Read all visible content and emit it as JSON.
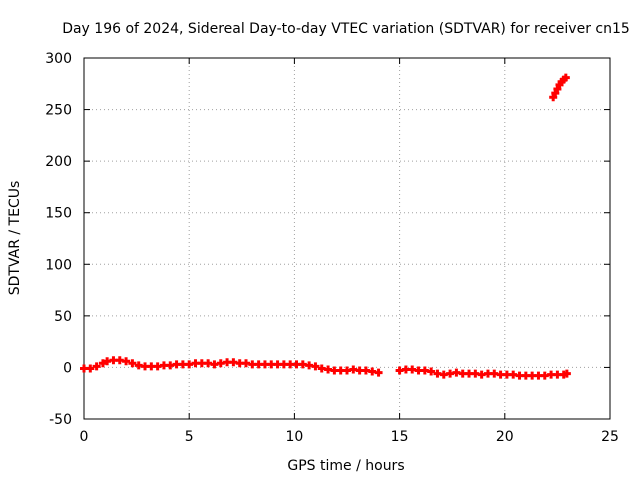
{
  "chart_data": {
    "type": "scatter",
    "title": "Day 196 of 2024, Sidereal Day-to-day VTEC variation (SDTVAR) for receiver cn15",
    "xlabel": "GPS time / hours",
    "ylabel": "SDTVAR / TECUs",
    "xlim": [
      0,
      25
    ],
    "ylim": [
      -50,
      300
    ],
    "xticks": [
      0,
      5,
      10,
      15,
      20,
      25
    ],
    "yticks": [
      -50,
      0,
      50,
      100,
      150,
      200,
      250,
      300
    ],
    "xtick_labels": [
      "0",
      "5",
      "10",
      "15",
      "20",
      "25"
    ],
    "ytick_labels": [
      "-50",
      "0",
      "50",
      "100",
      "150",
      "200",
      "250",
      "300"
    ],
    "grid": true,
    "marker": "plus",
    "color": "#ff0000",
    "series": [
      {
        "name": "SDTVAR",
        "x": [
          0.0,
          0.3,
          0.6,
          0.9,
          1.1,
          1.4,
          1.7,
          2.0,
          2.3,
          2.6,
          2.9,
          3.2,
          3.5,
          3.8,
          4.1,
          4.4,
          4.7,
          5.0,
          5.3,
          5.6,
          5.9,
          6.2,
          6.5,
          6.8,
          7.1,
          7.4,
          7.7,
          8.0,
          8.3,
          8.6,
          8.9,
          9.2,
          9.5,
          9.8,
          10.1,
          10.4,
          10.7,
          11.0,
          11.3,
          11.6,
          11.9,
          12.2,
          12.5,
          12.8,
          13.1,
          13.4,
          13.7,
          14.0,
          15.0,
          15.3,
          15.6,
          15.9,
          16.2,
          16.5,
          16.8,
          17.1,
          17.4,
          17.7,
          18.0,
          18.3,
          18.6,
          18.9,
          19.2,
          19.5,
          19.8,
          20.1,
          20.4,
          20.7,
          21.0,
          21.3,
          21.6,
          21.9,
          22.2,
          22.5,
          22.8,
          22.95,
          22.3,
          22.4,
          22.5,
          22.6,
          22.7,
          22.8,
          22.9
        ],
        "y": [
          -1,
          -1,
          1,
          4,
          6,
          7,
          7,
          6,
          4,
          2,
          1,
          1,
          1,
          2,
          2,
          3,
          3,
          3,
          4,
          4,
          4,
          3,
          4,
          5,
          5,
          4,
          4,
          3,
          3,
          3,
          3,
          3,
          3,
          3,
          3,
          3,
          2,
          1,
          -1,
          -2,
          -3,
          -3,
          -3,
          -2,
          -3,
          -3,
          -4,
          -5,
          -3,
          -2,
          -2,
          -3,
          -3,
          -4,
          -6,
          -7,
          -6,
          -5,
          -6,
          -6,
          -6,
          -7,
          -6,
          -6,
          -7,
          -7,
          -7,
          -8,
          -8,
          -8,
          -8,
          -8,
          -7,
          -7,
          -7,
          -6,
          262,
          266,
          270,
          274,
          277,
          279,
          281
        ]
      }
    ]
  }
}
